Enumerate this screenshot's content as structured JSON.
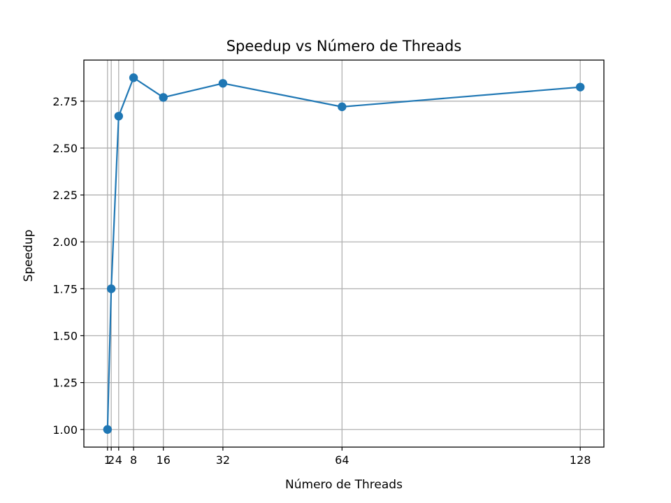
{
  "chart_data": {
    "type": "line",
    "title": "Speedup vs Número de Threads",
    "xlabel": "Número de Threads",
    "ylabel": "Speedup",
    "xlim": [
      -5.35,
      134.35
    ],
    "ylim": [
      0.906,
      2.969
    ],
    "x_ticks": [
      1,
      2,
      4,
      8,
      16,
      32,
      64,
      128
    ],
    "y_ticks": [
      1.0,
      1.25,
      1.5,
      1.75,
      2.0,
      2.25,
      2.5,
      2.75
    ],
    "y_tick_labels": [
      "1.00",
      "1.25",
      "1.50",
      "1.75",
      "2.00",
      "2.25",
      "2.50",
      "2.75"
    ],
    "grid": true,
    "series": [
      {
        "color": "#1f77b4",
        "marker": "circle",
        "x": [
          1,
          2,
          4,
          8,
          16,
          32,
          64,
          128
        ],
        "y": [
          1.0,
          1.75,
          2.67,
          2.875,
          2.77,
          2.845,
          2.72,
          2.825
        ]
      }
    ]
  },
  "colors": {
    "grid": "#b0b0b0",
    "axes": "#000000",
    "series_line": "#1f77b4"
  }
}
